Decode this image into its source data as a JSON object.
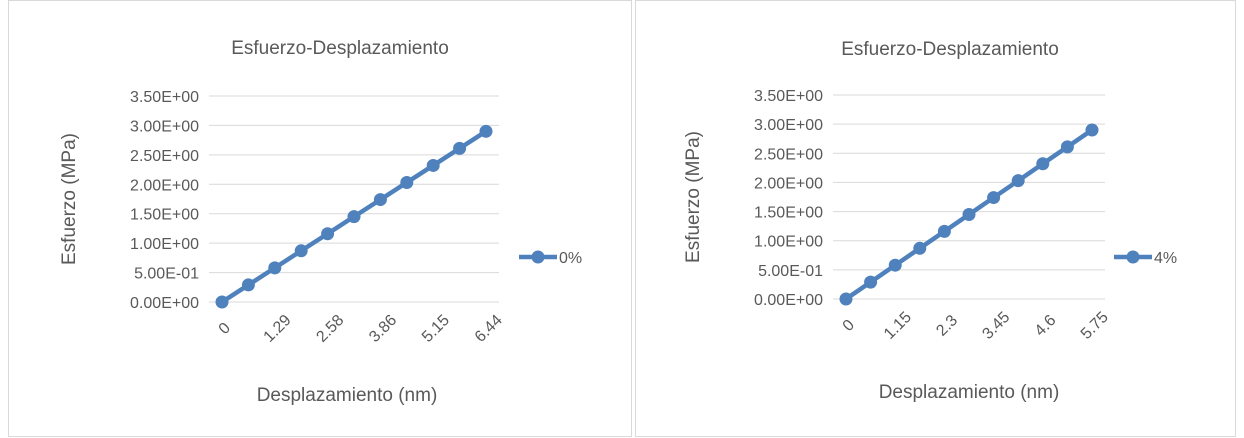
{
  "chart_data": [
    {
      "type": "line",
      "title": "Esfuerzo-Desplazamiento",
      "xlabel": "Desplazamiento (nm)",
      "ylabel": "Esfuerzo (MPa)",
      "ylim": [
        0,
        3.5
      ],
      "yticks": [
        0,
        0.5,
        1.0,
        1.5,
        2.0,
        2.5,
        3.0,
        3.5
      ],
      "ytick_labels": [
        "0.00E+00",
        "5.00E-01",
        "1.00E+00",
        "1.50E+00",
        "2.00E+00",
        "2.50E+00",
        "3.00E+00",
        "3.50E+00"
      ],
      "categories": [
        "0",
        "0.644",
        "1.29",
        "1.93",
        "2.58",
        "3.22",
        "3.86",
        "4.51",
        "5.15",
        "5.80",
        "6.44"
      ],
      "shown_tick_labels": [
        "0",
        "1.29",
        "2.58",
        "3.86",
        "5.15",
        "6.44"
      ],
      "series": [
        {
          "name": "0%",
          "color": "#4f81bd",
          "values": [
            0,
            0.29,
            0.58,
            0.87,
            1.16,
            1.45,
            1.74,
            2.03,
            2.32,
            2.61,
            2.9
          ]
        }
      ],
      "grid": "horizontal",
      "legend": "right"
    },
    {
      "type": "line",
      "title": "Esfuerzo-Desplazamiento",
      "xlabel": "Desplazamiento (nm)",
      "ylabel": "Esfuerzo (MPa)",
      "ylim": [
        0,
        3.5
      ],
      "yticks": [
        0,
        0.5,
        1.0,
        1.5,
        2.0,
        2.5,
        3.0,
        3.5
      ],
      "ytick_labels": [
        "0.00E+00",
        "5.00E-01",
        "1.00E+00",
        "1.50E+00",
        "2.00E+00",
        "2.50E+00",
        "3.00E+00",
        "3.50E+00"
      ],
      "categories": [
        "0",
        "0.575",
        "1.15",
        "1.725",
        "2.3",
        "2.875",
        "3.45",
        "4.025",
        "4.6",
        "5.175",
        "5.75"
      ],
      "shown_tick_labels": [
        "0",
        "1.15",
        "2.3",
        "3.45",
        "4.6",
        "5.75"
      ],
      "series": [
        {
          "name": "4%",
          "color": "#4f81bd",
          "values": [
            0,
            0.29,
            0.58,
            0.87,
            1.16,
            1.45,
            1.74,
            2.03,
            2.32,
            2.61,
            2.9
          ]
        }
      ],
      "grid": "horizontal",
      "legend": "right"
    }
  ]
}
